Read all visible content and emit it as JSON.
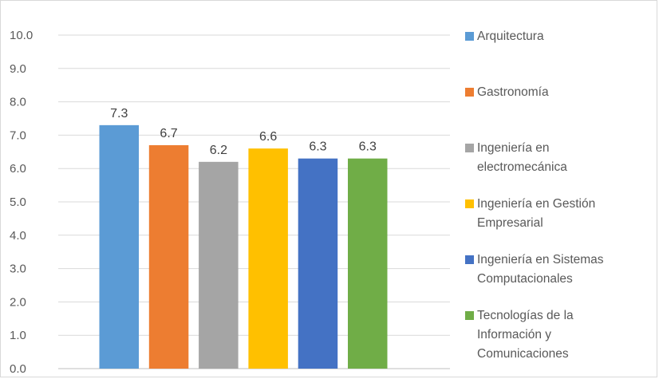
{
  "chart_data": {
    "type": "bar",
    "title": "",
    "xlabel": "",
    "ylabel": "",
    "ylim": [
      0,
      10
    ],
    "yticks": [
      "0.0",
      "1.0",
      "2.0",
      "3.0",
      "4.0",
      "5.0",
      "6.0",
      "7.0",
      "8.0",
      "9.0",
      "10.0"
    ],
    "grid": true,
    "legend_position": "right",
    "series": [
      {
        "name": "Arquitectura",
        "value": 7.3,
        "value_label": "7.3",
        "color": "#5b9bd5"
      },
      {
        "name": "Gastronomía",
        "value": 6.7,
        "value_label": "6.7",
        "color": "#ed7d31"
      },
      {
        "name": "Ingeniería en\nelectromecánica",
        "value": 6.2,
        "value_label": "6.2",
        "color": "#a5a5a5"
      },
      {
        "name": "Ingeniería en Gestión\nEmpresarial",
        "value": 6.6,
        "value_label": "6.6",
        "color": "#ffc000"
      },
      {
        "name": "Ingeniería en Sistemas\nComputacionales",
        "value": 6.3,
        "value_label": "6.3",
        "color": "#4472c4"
      },
      {
        "name": "Tecnologías de la\nInformación y\nComunicaciones",
        "value": 6.3,
        "value_label": "6.3",
        "color": "#70ad47"
      }
    ]
  }
}
